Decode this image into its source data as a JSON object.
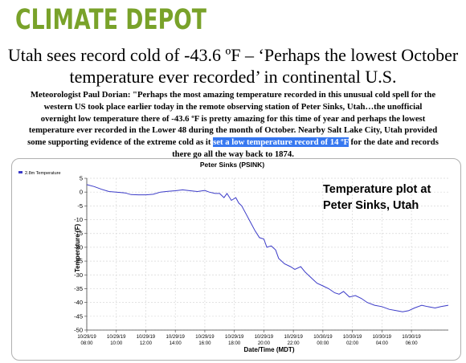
{
  "site": {
    "logo_text": "CLIMATE DEPOT",
    "logo_color": "#79a22a"
  },
  "article": {
    "headline_line1": "Utah sees record cold of -43.6 ºF – ‘Perhaps the lowest October",
    "headline_line2": "temperature ever recorded’ in continental U.S.",
    "body_lines": [
      "Meteorologist Paul Dorian:  \"Perhaps the most amazing temperature recorded in this unusual cold spell for the",
      "western US took place earlier today in the remote observing station of Peter Sinks, Utah…the unofficial",
      "overnight low temperature there of -43.6 ºF is pretty amazing for this time of year and perhaps the lowest",
      "temperature ever recorded in the Lower 48 during the month of October. Nearby Salt Lake City, Utah provided"
    ],
    "line5_before": "some supporting evidence of the extreme cold as it ",
    "line5_highlight": "set a low temperature record of 14 ºF",
    "line5_after": " for the date and records",
    "line6": "there go all the way back to 1874.",
    "highlight_color": "#3778f0"
  },
  "chart_data": {
    "type": "line",
    "title": "Peter Sinks (PSINK)",
    "legend": "2.8m Temperature",
    "annotation_line1": "Temperature plot at",
    "annotation_line2": "Peter Sinks, Utah",
    "xlabel": "Date/Time (MDT)",
    "ylabel": "Temperature (F)",
    "ylim": [
      -50,
      5
    ],
    "yticks": [
      5,
      0,
      -5,
      -10,
      -15,
      -20,
      -25,
      -30,
      -35,
      -40,
      -45,
      -50
    ],
    "xlim": [
      0,
      24.5
    ],
    "xticks": [
      {
        "x": 0,
        "line1": "10/29/19",
        "line2": "08:00"
      },
      {
        "x": 2,
        "line1": "10/29/19",
        "line2": "10:00"
      },
      {
        "x": 4,
        "line1": "10/29/19",
        "line2": "12:00"
      },
      {
        "x": 6,
        "line1": "10/29/19",
        "line2": "14:00"
      },
      {
        "x": 8,
        "line1": "10/29/19",
        "line2": "16:00"
      },
      {
        "x": 10,
        "line1": "10/29/19",
        "line2": "18:00"
      },
      {
        "x": 12,
        "line1": "10/29/19",
        "line2": "20:00"
      },
      {
        "x": 14,
        "line1": "10/29/19",
        "line2": "22:00"
      },
      {
        "x": 16,
        "line1": "10/30/19",
        "line2": "00:00"
      },
      {
        "x": 18,
        "line1": "10/30/19",
        "line2": "02:00"
      },
      {
        "x": 20,
        "line1": "10/30/19",
        "line2": "04:00"
      },
      {
        "x": 22,
        "line1": "10/30/19",
        "line2": "06:00"
      }
    ],
    "line_color": "#3b3bc8",
    "series": [
      {
        "values": [
          [
            0,
            2.7
          ],
          [
            0.5,
            2.0
          ],
          [
            1,
            1.0
          ],
          [
            1.5,
            0.2
          ],
          [
            2,
            0.0
          ],
          [
            2.6,
            -0.3
          ],
          [
            3,
            -0.9
          ],
          [
            3.5,
            -1.0
          ],
          [
            4,
            -1.0
          ],
          [
            4.5,
            -0.8
          ],
          [
            5,
            0.0
          ],
          [
            5.5,
            0.3
          ],
          [
            6,
            0.5
          ],
          [
            6.5,
            0.8
          ],
          [
            7,
            0.5
          ],
          [
            7.5,
            0.2
          ],
          [
            8,
            0.6
          ],
          [
            8.3,
            0.0
          ],
          [
            8.7,
            -0.5
          ],
          [
            9,
            -0.5
          ],
          [
            9.3,
            -2.0
          ],
          [
            9.5,
            -0.5
          ],
          [
            9.8,
            -3.0
          ],
          [
            10.1,
            -2.0
          ],
          [
            10.3,
            -4.0
          ],
          [
            10.5,
            -5.0
          ],
          [
            10.8,
            -8.0
          ],
          [
            11.1,
            -11.0
          ],
          [
            11.4,
            -14.0
          ],
          [
            11.7,
            -16.5
          ],
          [
            12,
            -17.0
          ],
          [
            12.2,
            -20.0
          ],
          [
            12.5,
            -19.5
          ],
          [
            12.8,
            -21.0
          ],
          [
            13,
            -24.0
          ],
          [
            13.4,
            -26.0
          ],
          [
            13.8,
            -27.0
          ],
          [
            14.1,
            -28.0
          ],
          [
            14.5,
            -27.0
          ],
          [
            14.8,
            -29.0
          ],
          [
            15.2,
            -31.0
          ],
          [
            15.6,
            -33.0
          ],
          [
            16,
            -34.0
          ],
          [
            16.4,
            -35.0
          ],
          [
            16.8,
            -36.5
          ],
          [
            17.1,
            -37.0
          ],
          [
            17.4,
            -36.0
          ],
          [
            17.8,
            -38.0
          ],
          [
            18.2,
            -37.5
          ],
          [
            18.6,
            -38.5
          ],
          [
            19,
            -40.0
          ],
          [
            19.5,
            -41.0
          ],
          [
            20,
            -41.5
          ],
          [
            20.5,
            -42.5
          ],
          [
            21,
            -43.0
          ],
          [
            21.4,
            -43.4
          ],
          [
            21.8,
            -43.0
          ],
          [
            22.2,
            -42.0
          ],
          [
            22.7,
            -41.0
          ],
          [
            23.1,
            -41.5
          ],
          [
            23.6,
            -42.0
          ],
          [
            24,
            -41.5
          ],
          [
            24.5,
            -41.0
          ]
        ]
      }
    ]
  }
}
